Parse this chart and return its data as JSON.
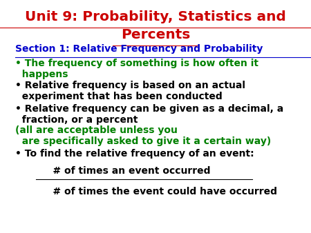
{
  "title_line1": "Unit 9: Probability, Statistics and",
  "title_line2": "Percents",
  "title_color": "#CC0000",
  "section_text": "Section 1: Relative Frequency and Probability",
  "section_color": "#0000CC",
  "bullet1_green": "• The frequency of something is how often it\n  happens",
  "bullet2_black": "• Relative frequency is based on an actual\n  experiment that has been conducted",
  "bullet3_black": "• Relative frequency can be given as a decimal, a\n  fraction, or a percent ",
  "bullet3_green": "(all are acceptable unless you\n  are specifically asked to give it a certain way)",
  "bullet4_black": "• To find the relative frequency of an event:",
  "fraction_num": "     # of times an event occurred",
  "fraction_den": "     # of times the event could have occurred",
  "green_color": "#008000",
  "black_color": "#000000",
  "blue_color": "#0000CC",
  "red_color": "#CC0000",
  "bg_color": "#ffffff",
  "font_size_title": 14.5,
  "font_size_section": 10.0,
  "font_size_body": 10.0
}
